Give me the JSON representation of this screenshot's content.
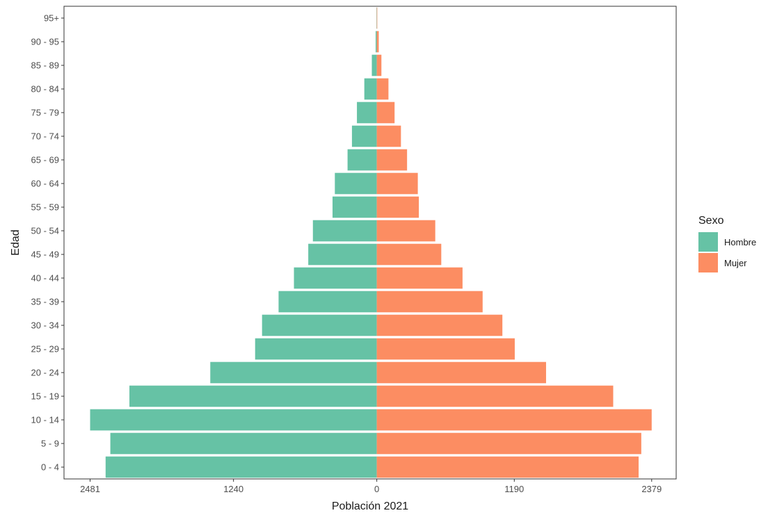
{
  "chart_data": {
    "type": "bar",
    "orientation": "horizontal",
    "layout": "population-pyramid",
    "xlabel": "Población 2021",
    "ylabel": "Edad",
    "categories": [
      "0 - 4",
      "5 - 9",
      "10 - 14",
      "15 - 19",
      "20 - 24",
      "25 - 29",
      "30 - 34",
      "35 - 39",
      "40 - 44",
      "45 - 49",
      "50 - 54",
      "55 - 59",
      "60 - 64",
      "65 - 69",
      "70 - 74",
      "75 - 79",
      "80 - 84",
      "85 - 89",
      "90 - 95",
      "95+"
    ],
    "series": [
      {
        "name": "Hombre",
        "color": "#66c2a5",
        "values": [
          2347,
          2306,
          2481,
          2141,
          1441,
          1053,
          993,
          850,
          717,
          593,
          553,
          383,
          363,
          253,
          215,
          172,
          108,
          43,
          10,
          3
        ]
      },
      {
        "name": "Mujer",
        "color": "#fc8d62",
        "values": [
          2266,
          2289,
          2379,
          2046,
          1465,
          1194,
          1087,
          916,
          742,
          558,
          506,
          364,
          355,
          262,
          209,
          154,
          101,
          40,
          17,
          4
        ]
      }
    ],
    "x_ticks": [
      {
        "value": -2481,
        "label": "2481"
      },
      {
        "value": -1240,
        "label": "1240"
      },
      {
        "value": 0,
        "label": "0"
      },
      {
        "value": 1190,
        "label": "1190"
      },
      {
        "value": 2379,
        "label": "2379"
      }
    ],
    "xlim": [
      -2707,
      2591
    ],
    "grid": false,
    "legend": {
      "title": "Sexo",
      "position": "right"
    }
  }
}
